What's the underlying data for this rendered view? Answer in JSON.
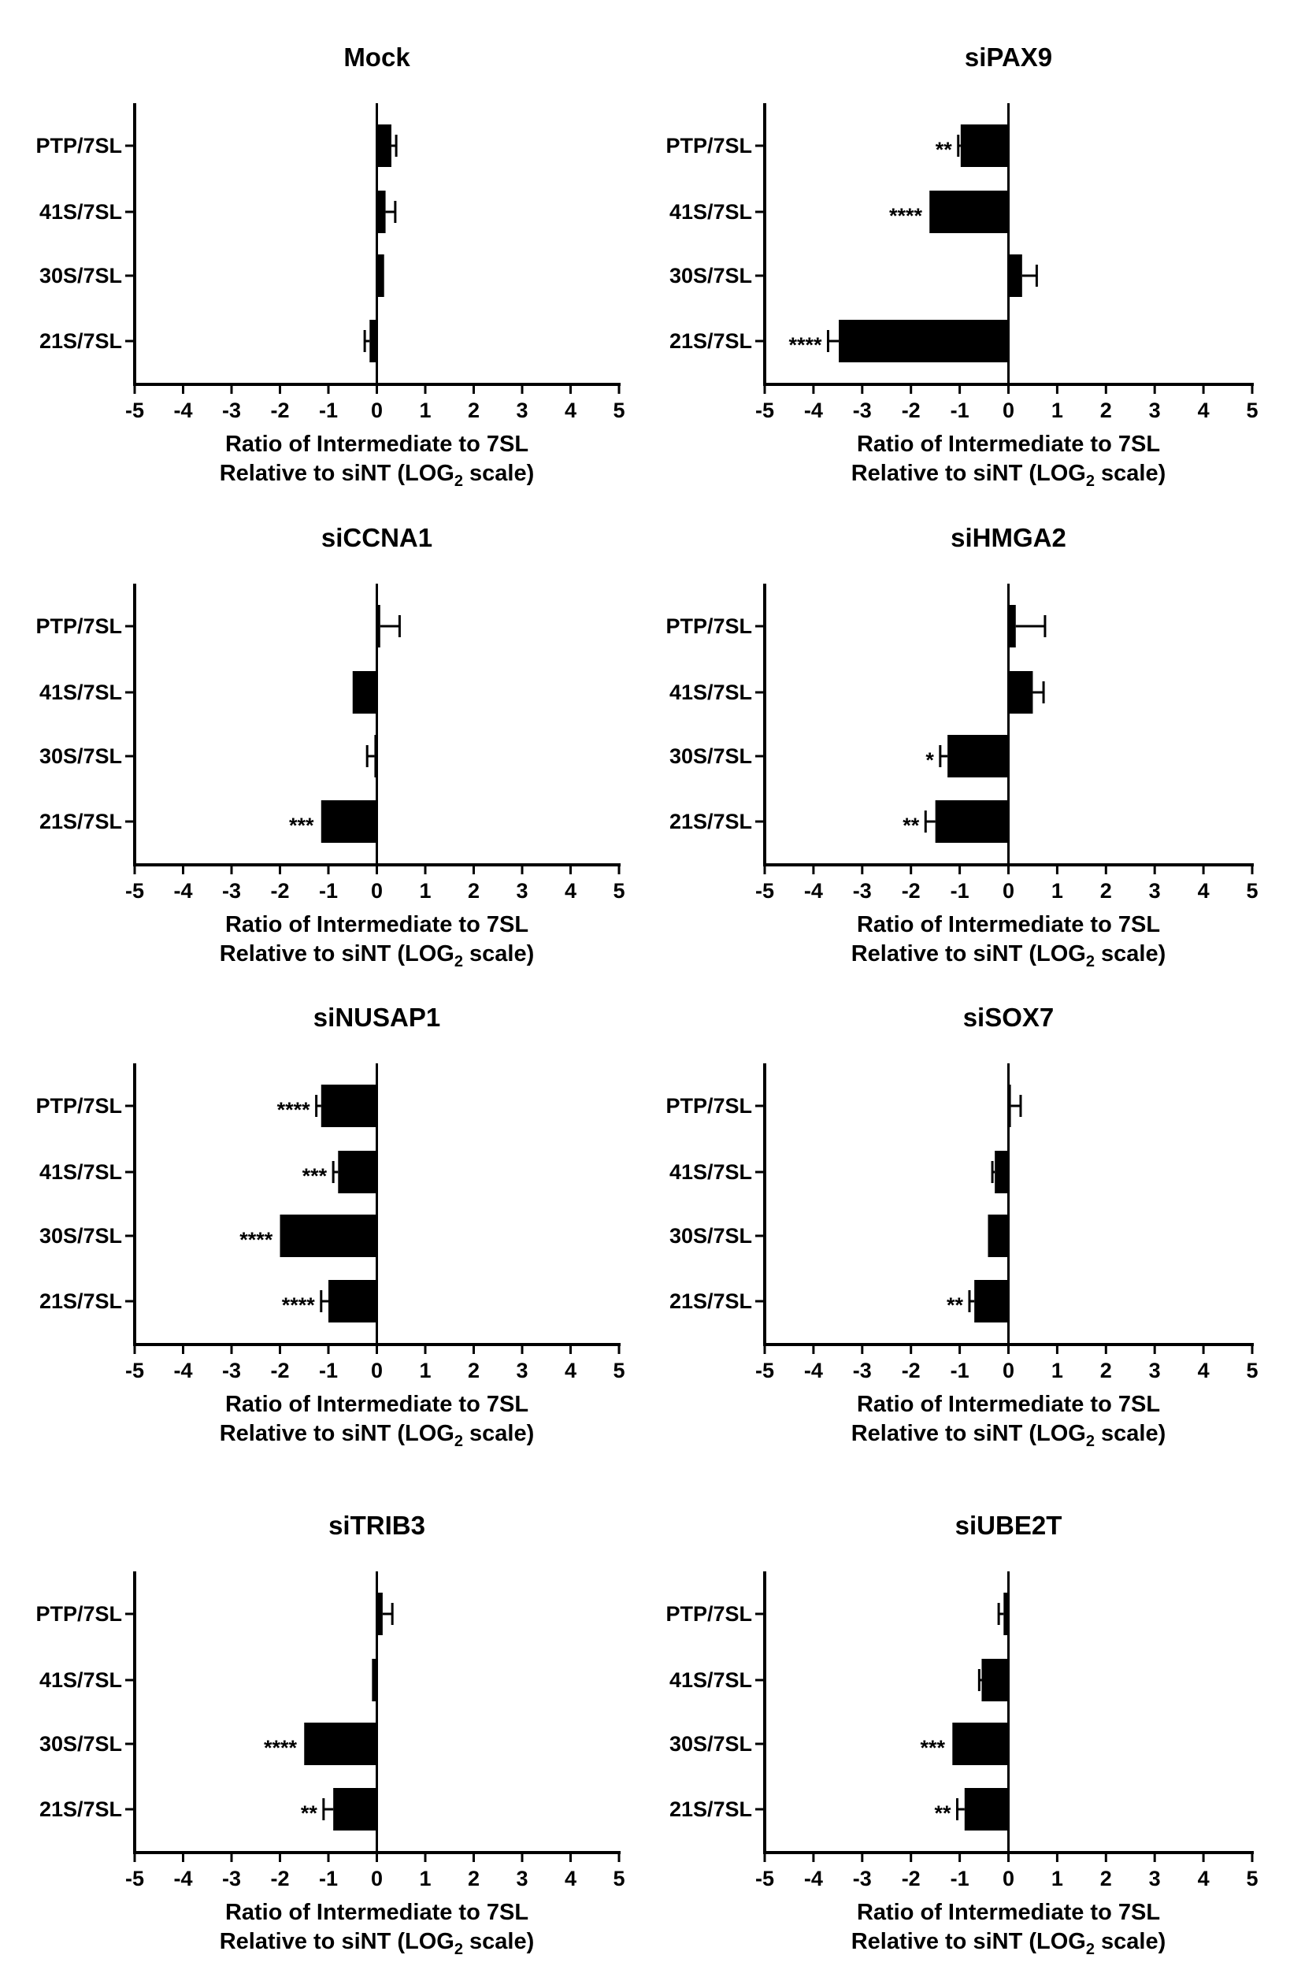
{
  "chart_data": [
    {
      "type": "bar",
      "orientation": "horizontal",
      "title": "Mock",
      "categories": [
        "PTP/7SL",
        "41S/7SL",
        "30S/7SL",
        "21S/7SL"
      ],
      "values": [
        0.3,
        0.18,
        0.15,
        -0.15
      ],
      "errors": [
        0.1,
        0.2,
        0.0,
        0.1
      ],
      "significance": [
        "",
        "",
        "",
        ""
      ]
    },
    {
      "type": "bar",
      "orientation": "horizontal",
      "title": "siPAX9",
      "categories": [
        "PTP/7SL",
        "41S/7SL",
        "30S/7SL",
        "21S/7SL"
      ],
      "values": [
        -0.98,
        -1.62,
        0.28,
        -3.48
      ],
      "errors": [
        0.05,
        0.02,
        0.3,
        0.22
      ],
      "significance": [
        "**",
        "****",
        "",
        "****"
      ]
    },
    {
      "type": "bar",
      "orientation": "horizontal",
      "title": "siCCNA1",
      "categories": [
        "PTP/7SL",
        "41S/7SL",
        "30S/7SL",
        "21S/7SL"
      ],
      "values": [
        0.07,
        -0.5,
        -0.05,
        -1.15
      ],
      "errors": [
        0.4,
        0.02,
        0.15,
        0.02
      ],
      "significance": [
        "",
        "",
        "",
        "***"
      ]
    },
    {
      "type": "bar",
      "orientation": "horizontal",
      "title": "siHMGA2",
      "categories": [
        "PTP/7SL",
        "41S/7SL",
        "30S/7SL",
        "21S/7SL"
      ],
      "values": [
        0.15,
        0.5,
        -1.25,
        -1.5
      ],
      "errors": [
        0.6,
        0.22,
        0.15,
        0.2
      ],
      "significance": [
        "",
        "",
        "*",
        "**"
      ]
    },
    {
      "type": "bar",
      "orientation": "horizontal",
      "title": "siNUSAP1",
      "categories": [
        "PTP/7SL",
        "41S/7SL",
        "30S/7SL",
        "21S/7SL"
      ],
      "values": [
        -1.15,
        -0.8,
        -2.0,
        -1.0
      ],
      "errors": [
        0.1,
        0.1,
        0.02,
        0.15
      ],
      "significance": [
        "****",
        "***",
        "****",
        "****"
      ]
    },
    {
      "type": "bar",
      "orientation": "horizontal",
      "title": "siSOX7",
      "categories": [
        "PTP/7SL",
        "41S/7SL",
        "30S/7SL",
        "21S/7SL"
      ],
      "values": [
        0.05,
        -0.28,
        -0.42,
        -0.7
      ],
      "errors": [
        0.2,
        0.05,
        0.02,
        0.1
      ],
      "significance": [
        "",
        "",
        "",
        "**"
      ]
    },
    {
      "type": "bar",
      "orientation": "horizontal",
      "title": "siTRIB3",
      "categories": [
        "PTP/7SL",
        "41S/7SL",
        "30S/7SL",
        "21S/7SL"
      ],
      "values": [
        0.12,
        -0.1,
        -1.5,
        -0.9
      ],
      "errors": [
        0.2,
        0.02,
        0.02,
        0.2
      ],
      "significance": [
        "",
        "",
        "****",
        "**"
      ]
    },
    {
      "type": "bar",
      "orientation": "horizontal",
      "title": "siUBE2T",
      "categories": [
        "PTP/7SL",
        "41S/7SL",
        "30S/7SL",
        "21S/7SL"
      ],
      "values": [
        -0.1,
        -0.55,
        -1.15,
        -0.9
      ],
      "errors": [
        0.1,
        0.05,
        0.02,
        0.15
      ],
      "significance": [
        "",
        "",
        "***",
        "**"
      ]
    }
  ],
  "shared": {
    "xlim": [
      -5,
      5
    ],
    "xticks": [
      "-5",
      "-4",
      "-3",
      "-2",
      "-1",
      "0",
      "1",
      "2",
      "3",
      "4",
      "5"
    ],
    "xlabel_line1": "Ratio of Intermediate to 7SL",
    "xlabel_line2_pre": "Relative to siNT (LOG",
    "xlabel_line2_sub": "2",
    "xlabel_line2_post": " scale)",
    "grid": false,
    "bar_color": "#000000"
  }
}
